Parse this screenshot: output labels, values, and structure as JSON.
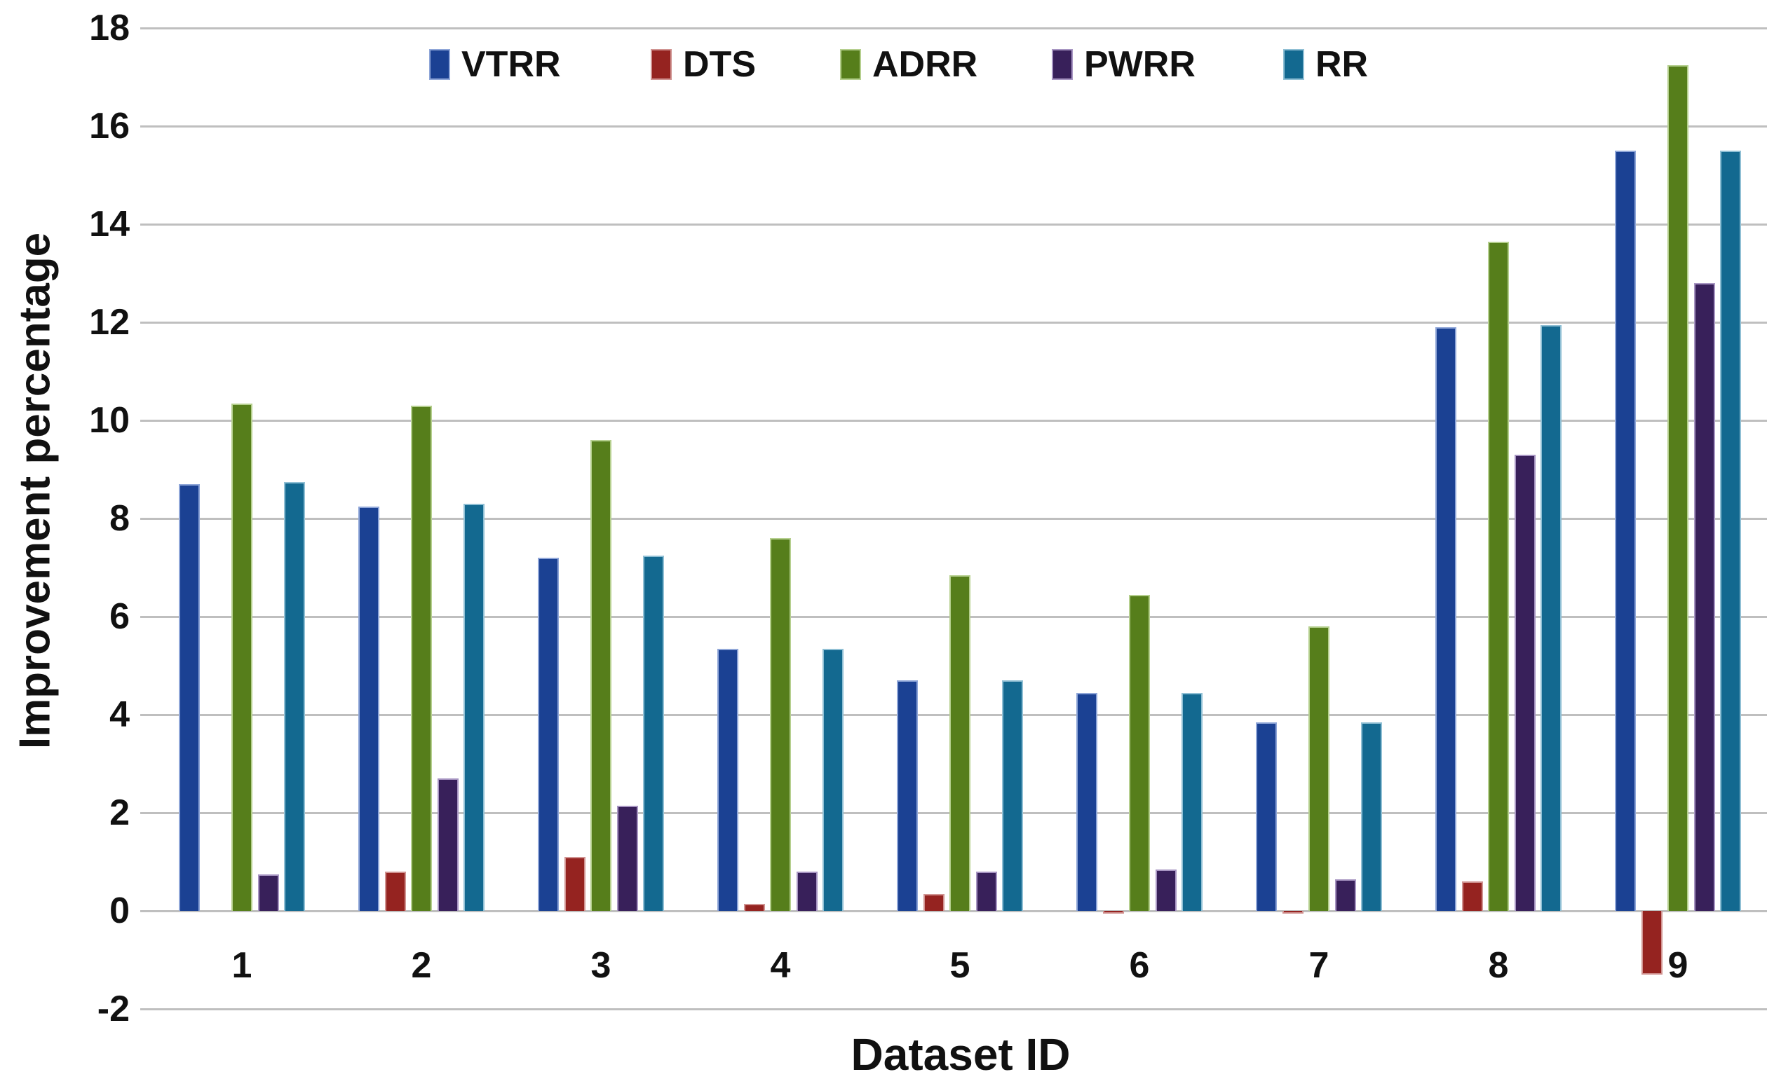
{
  "chart_data": {
    "type": "bar",
    "title": "",
    "xlabel": "Dataset ID",
    "ylabel": "Improvement percentage",
    "categories": [
      "1",
      "2",
      "3",
      "4",
      "5",
      "6",
      "7",
      "8",
      "9"
    ],
    "ylim": [
      -2,
      18
    ],
    "yticks": [
      18,
      16,
      14,
      12,
      10,
      8,
      6,
      4,
      2,
      0,
      -2
    ],
    "grid": true,
    "legend_position": "top",
    "background_color": "#ffffff",
    "gridline_color": "#bfbfbf",
    "text_color": "#111111",
    "series": [
      {
        "name": "VTRR",
        "color": "#1b4193",
        "edge": "#8fa6d8",
        "values": [
          8.7,
          8.25,
          7.2,
          5.35,
          4.7,
          4.45,
          3.85,
          11.9,
          15.5
        ]
      },
      {
        "name": "DTS",
        "color": "#952320",
        "edge": "#d09391",
        "values": [
          0,
          0.8,
          1.1,
          0.15,
          0.35,
          -0.05,
          -0.05,
          0.6,
          -1.3
        ]
      },
      {
        "name": "ADRR",
        "color": "#567e1b",
        "edge": "#b5cf8e",
        "values": [
          10.35,
          10.3,
          9.6,
          7.6,
          6.85,
          6.45,
          5.8,
          13.65,
          17.25
        ]
      },
      {
        "name": "PWRR",
        "color": "#38205a",
        "edge": "#a795c2",
        "values": [
          0.75,
          2.7,
          2.15,
          0.8,
          0.8,
          0.85,
          0.65,
          9.3,
          12.8
        ]
      },
      {
        "name": "RR",
        "color": "#136990",
        "edge": "#8fbfd4",
        "values": [
          8.75,
          8.3,
          7.25,
          5.35,
          4.7,
          4.45,
          3.85,
          11.95,
          15.5
        ]
      }
    ]
  }
}
